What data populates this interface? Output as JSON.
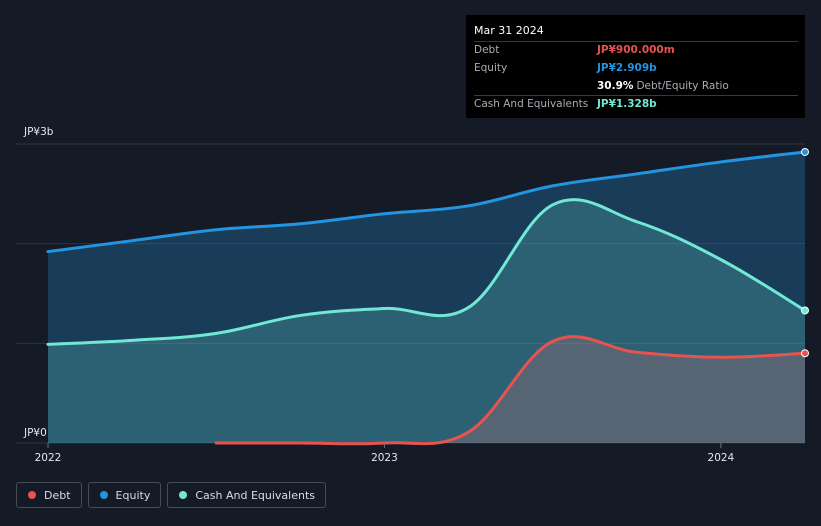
{
  "tooltip": {
    "date": "Mar 31 2024",
    "rows": [
      {
        "label": "Debt",
        "value": "JP¥900.000m",
        "color": "#e8524f"
      },
      {
        "label": "Equity",
        "value": "JP¥2.909b",
        "color": "#2394df"
      },
      {
        "label": "",
        "value": "30.9%",
        "extra": "Debt/Equity Ratio",
        "color": "#ffffff"
      },
      {
        "label": "Cash And Equivalents",
        "value": "JP¥1.328b",
        "color": "#71e8d3"
      }
    ]
  },
  "legend": [
    {
      "label": "Debt",
      "color": "#e8524f"
    },
    {
      "label": "Equity",
      "color": "#2394df"
    },
    {
      "label": "Cash And Equivalents",
      "color": "#71e8d3"
    }
  ],
  "chart_data": {
    "type": "area",
    "y_unit": "JP¥ billions",
    "y_tick_labels": [
      {
        "value": 3,
        "label": "JP¥3b"
      },
      {
        "value": 0,
        "label": "JP¥0"
      }
    ],
    "ylim": [
      0,
      3
    ],
    "x_ticks": [
      {
        "value": 2022.0,
        "label": "2022"
      },
      {
        "value": 2023.0,
        "label": "2023"
      },
      {
        "value": 2024.0,
        "label": "2024"
      }
    ],
    "xlim": [
      2021.92,
      2024.25
    ],
    "grid": true,
    "legend_position": "bottom-left",
    "series": [
      {
        "name": "Equity",
        "color": "#2394df",
        "points": [
          [
            2022.0,
            1.92
          ],
          [
            2022.25,
            2.03
          ],
          [
            2022.5,
            2.14
          ],
          [
            2022.75,
            2.2
          ],
          [
            2023.0,
            2.3
          ],
          [
            2023.25,
            2.38
          ],
          [
            2023.5,
            2.58
          ],
          [
            2023.75,
            2.7
          ],
          [
            2024.0,
            2.82
          ],
          [
            2024.25,
            2.92
          ]
        ]
      },
      {
        "name": "Cash And Equivalents",
        "color": "#71e8d3",
        "points": [
          [
            2022.0,
            0.99
          ],
          [
            2022.25,
            1.03
          ],
          [
            2022.5,
            1.1
          ],
          [
            2022.75,
            1.28
          ],
          [
            2023.0,
            1.35
          ],
          [
            2023.25,
            1.36
          ],
          [
            2023.5,
            2.39
          ],
          [
            2023.75,
            2.22
          ],
          [
            2024.0,
            1.84
          ],
          [
            2024.25,
            1.33
          ]
        ]
      },
      {
        "name": "Debt",
        "color": "#e8524f",
        "points": [
          [
            2022.5,
            0.0
          ],
          [
            2022.75,
            0.0
          ],
          [
            2023.0,
            0.0
          ],
          [
            2023.25,
            0.11
          ],
          [
            2023.5,
            1.02
          ],
          [
            2023.75,
            0.91
          ],
          [
            2024.0,
            0.86
          ],
          [
            2024.25,
            0.9
          ]
        ]
      }
    ]
  }
}
